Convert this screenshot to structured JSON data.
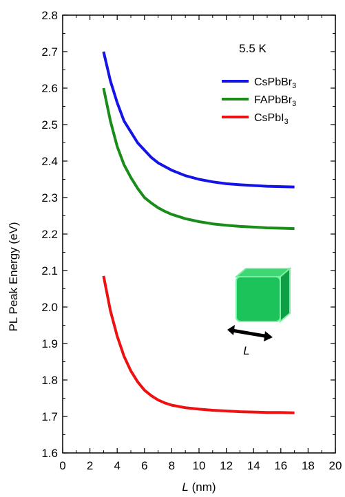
{
  "chart_data": {
    "type": "line",
    "xlabel_italic": "L",
    "xlabel_rest": " (nm)",
    "ylabel": "PL Peak Energy (eV)",
    "xlim": [
      0,
      20
    ],
    "ylim": [
      1.6,
      2.8
    ],
    "xticks": [
      0,
      2,
      4,
      6,
      8,
      10,
      12,
      14,
      16,
      18,
      20
    ],
    "yticks": [
      1.6,
      1.7,
      1.8,
      1.9,
      2.0,
      2.1,
      2.2,
      2.3,
      2.4,
      2.5,
      2.6,
      2.7,
      2.8
    ],
    "ytick_labels": [
      "1.6",
      "1.7",
      "1.8",
      "1.9",
      "2.0",
      "2.1",
      "2.2",
      "2.3",
      "2.4",
      "2.5",
      "2.6",
      "2.7",
      "2.8"
    ],
    "grid": false,
    "annotation": "5.5 K",
    "inset_label": "L",
    "legend_position": "top-right",
    "series": [
      {
        "name_base": "CsPbBr",
        "name_sub": "3",
        "color": "#1414e6",
        "x": [
          3,
          3.5,
          4,
          4.5,
          5,
          5.5,
          6,
          6.5,
          7,
          7.5,
          8,
          9,
          10,
          11,
          12,
          13,
          14,
          15,
          16,
          17
        ],
        "y": [
          2.7,
          2.62,
          2.56,
          2.51,
          2.48,
          2.45,
          2.43,
          2.41,
          2.395,
          2.385,
          2.375,
          2.36,
          2.35,
          2.343,
          2.338,
          2.335,
          2.333,
          2.331,
          2.33,
          2.329
        ]
      },
      {
        "name_base": "FAPbBr",
        "name_sub": "3",
        "color": "#1a8c1a",
        "x": [
          3,
          3.5,
          4,
          4.5,
          5,
          5.5,
          6,
          6.5,
          7,
          7.5,
          8,
          9,
          10,
          11,
          12,
          13,
          14,
          15,
          16,
          17
        ],
        "y": [
          2.6,
          2.51,
          2.44,
          2.39,
          2.355,
          2.325,
          2.3,
          2.285,
          2.272,
          2.262,
          2.254,
          2.242,
          2.234,
          2.228,
          2.224,
          2.221,
          2.219,
          2.217,
          2.216,
          2.215
        ]
      },
      {
        "name_base": "CsPbI",
        "name_sub": "3",
        "color": "#ee1111",
        "x": [
          3,
          3.5,
          4,
          4.5,
          5,
          5.5,
          6,
          6.5,
          7,
          7.5,
          8,
          9,
          10,
          11,
          12,
          13,
          14,
          15,
          16,
          17
        ],
        "y": [
          2.085,
          1.99,
          1.92,
          1.865,
          1.825,
          1.795,
          1.772,
          1.757,
          1.745,
          1.737,
          1.731,
          1.724,
          1.72,
          1.717,
          1.715,
          1.713,
          1.712,
          1.711,
          1.711,
          1.71
        ]
      }
    ]
  }
}
